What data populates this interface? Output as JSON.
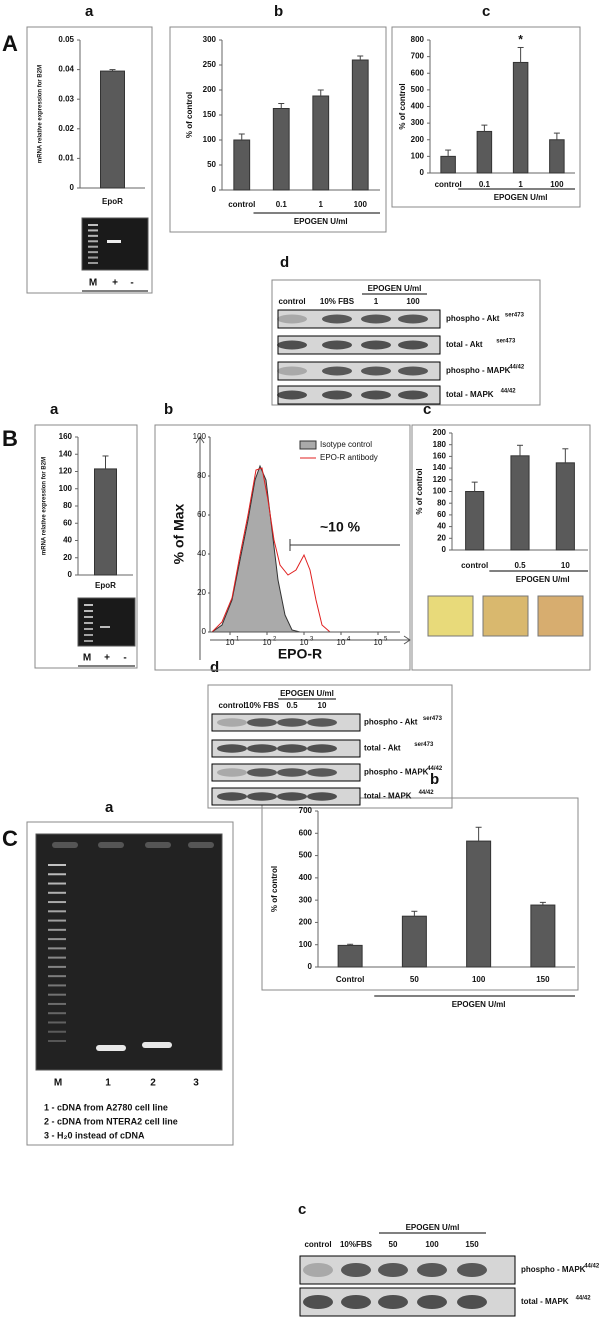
{
  "panel_A": {
    "label": "A",
    "sub": [
      "a",
      "b",
      "c",
      "d"
    ],
    "gel_lanes": [
      "M",
      "+",
      "-"
    ],
    "blot": {
      "group": "EPOGEN U/ml",
      "header": [
        "control",
        "10% FBS",
        "1",
        "100"
      ],
      "rows": [
        {
          "name": "phospho - Akt",
          "sup": "ser473"
        },
        {
          "name": "total - Akt",
          "sup": "ser473"
        },
        {
          "name": "phospho - MAPK",
          "sup": "44/42"
        },
        {
          "name": "total - MAPK",
          "sup": "44/42"
        }
      ]
    }
  },
  "panel_B": {
    "label": "B",
    "sub": [
      "a",
      "b",
      "c",
      "d"
    ],
    "gel_lanes": [
      "M",
      "+",
      "-"
    ],
    "flow": {
      "y_label": "% of Max",
      "x_label": "EPO-R",
      "legend": [
        "Isotype control",
        "EPO-R antibody"
      ],
      "annotation": "~10 %",
      "yticks": [
        0,
        20,
        40,
        60,
        80,
        100
      ],
      "xtick_base": "10",
      "xticks": [
        1,
        2,
        3,
        4,
        5
      ]
    },
    "blot": {
      "group": "EPOGEN U/ml",
      "header": [
        "control",
        "10% FBS",
        "0.5",
        "10"
      ],
      "rows": [
        {
          "name": "phospho - Akt",
          "sup": "ser473"
        },
        {
          "name": "total - Akt",
          "sup": "ser473"
        },
        {
          "name": "phospho - MAPK",
          "sup": "44/42"
        },
        {
          "name": "total - MAPK",
          "sup": "44/42"
        }
      ]
    }
  },
  "panel_C": {
    "label": "C",
    "sub": [
      "a",
      "b",
      "c"
    ],
    "gel_lanes": [
      "M",
      "1",
      "2",
      "3"
    ],
    "gel_legend": [
      "1 - cDNA from A2780 cell line",
      "2 - cDNA from NTERA2 cell line",
      "3 - H₂0 instead of cDNA"
    ],
    "blot": {
      "group": "EPOGEN U/ml",
      "header": [
        "control",
        "10%FBS",
        "50",
        "100",
        "150"
      ],
      "rows": [
        {
          "name": "phospho - MAPK",
          "sup": "44/42"
        },
        {
          "name": "total - MAPK",
          "sup": "44/42"
        }
      ]
    }
  },
  "chart_data": [
    {
      "type": "bar",
      "y_label": "mRNA relative expression for B2M",
      "categories": [
        "EpoR"
      ],
      "values": [
        0.0395
      ],
      "errors": [
        0.0005
      ],
      "color": "#5a5a5a",
      "ylim": [
        0,
        0.05
      ],
      "yticks": [
        0,
        0.01,
        0.02,
        0.03,
        0.04,
        0.05
      ]
    },
    {
      "type": "bar",
      "y_label": "% of control",
      "x_label": "EPOGEN U/ml",
      "categories": [
        "control",
        "0.1",
        "1",
        "100"
      ],
      "values": [
        100,
        163,
        188,
        260
      ],
      "errors": [
        12,
        10,
        12,
        8
      ],
      "color": "#5a5a5a",
      "ylim": [
        0,
        300
      ],
      "yticks": [
        0,
        50,
        100,
        150,
        200,
        250,
        300
      ]
    },
    {
      "type": "bar",
      "y_label": "% of control",
      "x_label": "EPOGEN U/ml",
      "categories": [
        "control",
        "0.1",
        "1",
        "100"
      ],
      "values": [
        100,
        250,
        665,
        200
      ],
      "errors": [
        38,
        38,
        90,
        40
      ],
      "color": "#5a5a5a",
      "ylim": [
        0,
        800
      ],
      "yticks": [
        0,
        100,
        200,
        300,
        400,
        500,
        600,
        700,
        800
      ],
      "annotations": [
        {
          "text": "*",
          "category": "1"
        }
      ]
    },
    {
      "type": "bar",
      "y_label": "mRNA relative expression for B2M",
      "categories": [
        "EpoR"
      ],
      "values": [
        123
      ],
      "errors": [
        15
      ],
      "color": "#5a5a5a",
      "ylim": [
        0,
        160
      ],
      "yticks": [
        0,
        20,
        40,
        60,
        80,
        100,
        120,
        140,
        160
      ]
    },
    {
      "type": "bar",
      "y_label": "% of control",
      "x_label": "EPOGEN U/ml",
      "categories": [
        "control",
        "0.5",
        "10"
      ],
      "values": [
        100,
        161,
        149
      ],
      "errors": [
        16,
        18,
        24
      ],
      "color": "#5a5a5a",
      "ylim": [
        0,
        200
      ],
      "yticks": [
        0,
        20,
        40,
        60,
        80,
        100,
        120,
        140,
        160,
        180,
        200
      ]
    },
    {
      "type": "bar",
      "y_label": "% of control",
      "x_label": "EPOGEN U/ml",
      "categories": [
        "Control",
        "50",
        "100",
        "150"
      ],
      "values": [
        97,
        228,
        565,
        278
      ],
      "errors": [
        5,
        22,
        62,
        12
      ],
      "color": "#5a5a5a",
      "ylim": [
        0,
        700
      ],
      "yticks": [
        0,
        100,
        200,
        300,
        400,
        500,
        600,
        700
      ]
    }
  ]
}
